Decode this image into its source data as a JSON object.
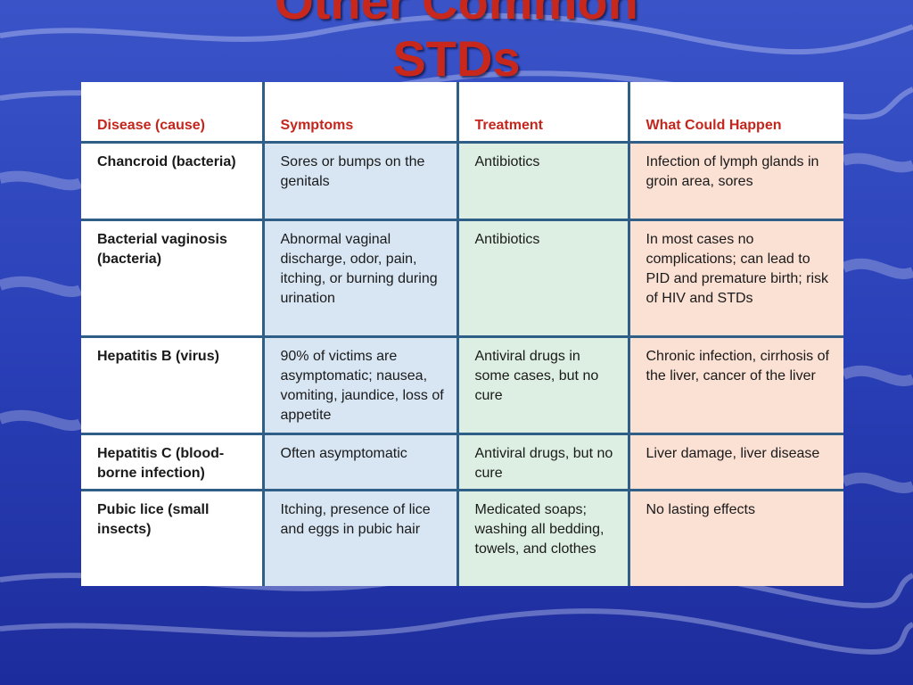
{
  "slide": {
    "title_line1": "Other Common",
    "title_line2": "STDs",
    "title_color": "#c8281c",
    "background_color": "#2434b4"
  },
  "table": {
    "headers": [
      "Disease (cause)",
      "Symptoms",
      "Treatment",
      "What Could Happen"
    ],
    "rows": [
      [
        "Chancroid (bacteria)",
        "Sores or bumps on the genitals",
        "Antibiotics",
        "Infection of lymph glands in groin area, sores"
      ],
      [
        "Bacterial vaginosis (bacteria)",
        "Abnormal vaginal discharge, odor, pain, itching, or burning during urination",
        "Antibiotics",
        "In most cases no complications; can lead to PID and premature birth; risk of HIV and STDs"
      ],
      [
        "Hepatitis B (virus)",
        "90% of victims are asymptomatic; nausea, vomiting, jaundice, loss of appetite",
        "Antiviral drugs in some cases, but no cure",
        "Chronic infection, cirrhosis of the liver, cancer of the liver"
      ],
      [
        "Hepatitis C (blood-borne infection)",
        "Often asymptomatic",
        "Antiviral drugs, but no cure",
        "Liver damage, liver disease"
      ],
      [
        "Pubic lice (small insects)",
        "Itching, presence of lice and eggs in pubic hair",
        "Medicated soaps; washing all bedding, towels, and clothes",
        "No lasting effects"
      ]
    ],
    "colors": {
      "header_text": "#c4261c",
      "symptoms_bg": "#d8e6f4",
      "treatment_bg": "#dcefe2",
      "outcome_bg": "#fbe0d4",
      "rule": "#2f5f86"
    }
  }
}
